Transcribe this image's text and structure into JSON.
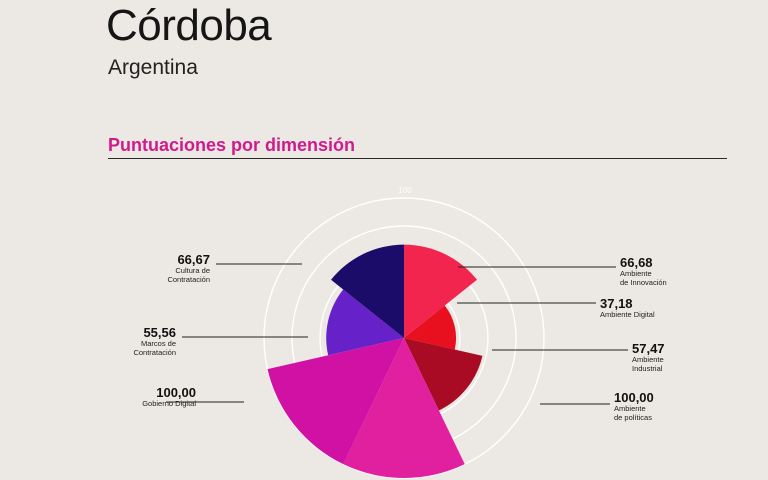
{
  "header": {
    "title": "Córdoba",
    "subtitle": "Argentina",
    "section_title": "Puntuaciones por dimensión",
    "scale_max_label": "100"
  },
  "chart_data": {
    "type": "polar-area",
    "title": "Puntuaciones por dimensión",
    "scale_max": 100,
    "rings": 5,
    "categories": [
      {
        "name": "Ambiente\nde Innovación",
        "value": 66.68,
        "display": "66,68",
        "color": "#f2254f"
      },
      {
        "name": "Ambiente Digital",
        "value": 37.18,
        "display": "37,18",
        "color": "#e8101e"
      },
      {
        "name": "Ambiente\nIndustrial",
        "value": 57.47,
        "display": "57,47",
        "color": "#a90b24"
      },
      {
        "name": "Ambiente\nde políticas",
        "value": 100.0,
        "display": "100,00",
        "color": "#e0209f"
      },
      {
        "name": "Gobierno Digital",
        "value": 100.0,
        "display": "100,00",
        "color": "#d011a4"
      },
      {
        "name": "Marcos de\nContratación",
        "value": 55.56,
        "display": "55,56",
        "color": "#6622c8"
      },
      {
        "name": "Cultura de\nContratación",
        "value": 66.67,
        "display": "66,67",
        "color": "#1c0c6a"
      }
    ]
  }
}
